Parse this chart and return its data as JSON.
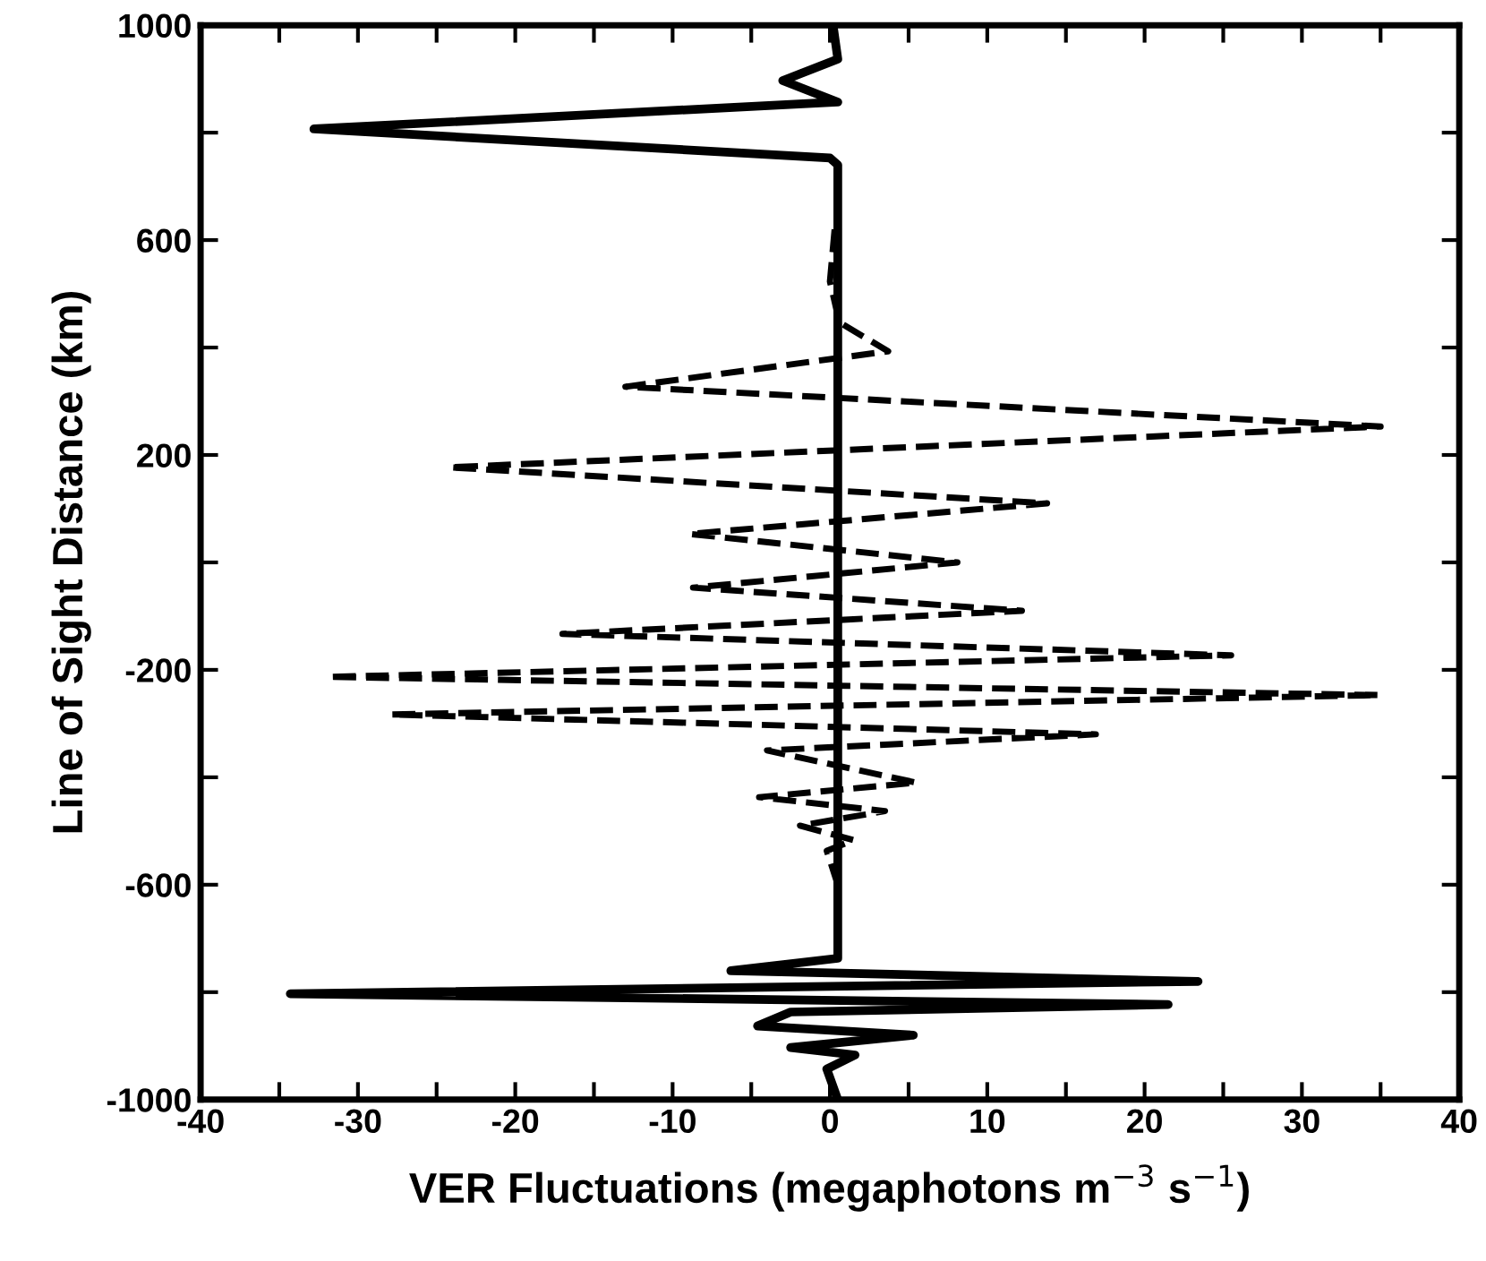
{
  "chart_data": {
    "type": "line",
    "xlabel": "VER Fluctuations (megaphotons m$^{−3}$ s$^{−1}$)",
    "ylabel": "Line of Sight Distance (km)",
    "xlim": [
      -40,
      40
    ],
    "ylim": [
      -1000,
      1000
    ],
    "xticks": [
      -40,
      {
        "value": -35,
        "label": null
      },
      -30,
      {
        "value": -25,
        "label": null
      },
      -20,
      {
        "value": -15,
        "label": null
      },
      -10,
      {
        "value": -5,
        "label": null
      },
      0,
      {
        "value": 5,
        "label": null
      },
      10,
      {
        "value": 15,
        "label": null
      },
      20,
      {
        "value": 25,
        "label": null
      },
      30,
      {
        "value": 35,
        "label": null
      },
      40
    ],
    "yticks": [
      -1000,
      {
        "value": -800,
        "label": null
      },
      -600,
      {
        "value": -400,
        "label": null
      },
      -200,
      {
        "value": 0,
        "label": null
      },
      200,
      {
        "value": 400,
        "label": null
      },
      600,
      {
        "value": 800,
        "label": null
      },
      1000
    ],
    "series": [
      {
        "color": "#000000",
        "line_style": "solid",
        "x": [
          0.2,
          0.5,
          -3.0,
          0.5,
          -32.8,
          0.0,
          0.5,
          0.5,
          0.5,
          -6.3,
          23.4,
          -34.3,
          21.5,
          -2.5,
          -4.6,
          5.3,
          -2.5,
          1.6,
          -0.2,
          0.5
        ],
        "values": [
          1000,
          937,
          897,
          857,
          807,
          753,
          740,
          0,
          -737,
          -760,
          -780,
          -803,
          -823,
          -837,
          -863,
          -880,
          -903,
          -917,
          -943,
          -1000
        ]
      },
      {
        "color": "#000000",
        "line_style": "dashed",
        "x": [
          0.3,
          0.0,
          0.6,
          3.7,
          -13.0,
          35.0,
          -24.2,
          13.8,
          -8.9,
          8.1,
          -8.7,
          12.2,
          -17.0,
          25.5,
          -31.9,
          34.9,
          -27.9,
          16.9,
          -4.0,
          5.5,
          -4.5,
          3.5,
          -1.9,
          1.5,
          -0.2,
          0.5
        ],
        "values": [
          620,
          523,
          447,
          393,
          327,
          253,
          177,
          110,
          53,
          0,
          -47,
          -90,
          -133,
          -173,
          -213,
          -247,
          -283,
          -320,
          -350,
          -410,
          -437,
          -463,
          -490,
          -517,
          -537,
          -600
        ]
      }
    ]
  }
}
